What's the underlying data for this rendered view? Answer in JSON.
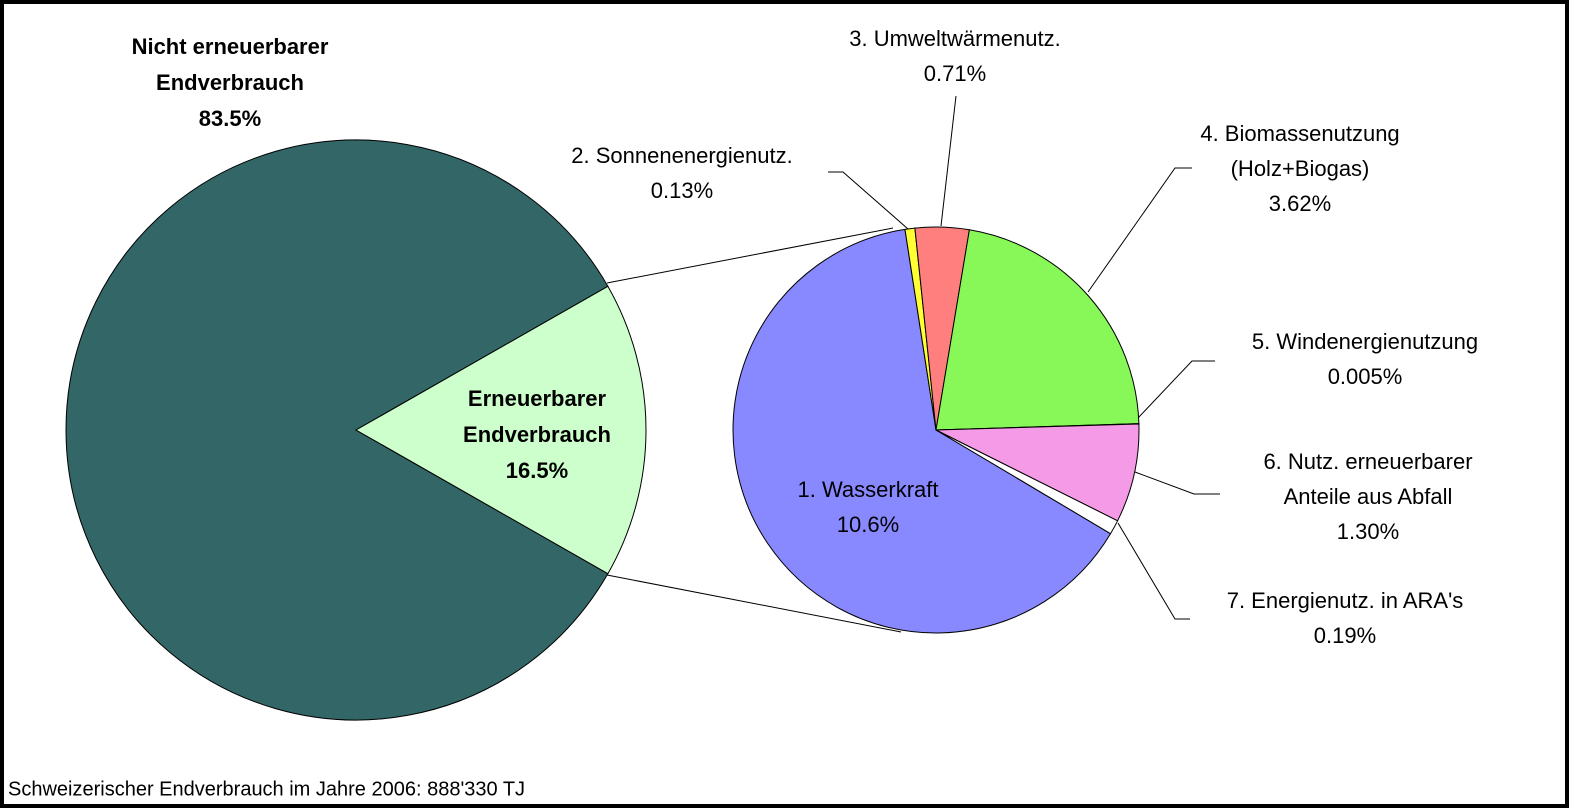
{
  "footnote": "Schweizerischer Endverbrauch im Jahre 2006:  888'330 TJ",
  "chart_data": [
    {
      "type": "pie",
      "categories": [
        [
          "Nicht erneuerbarer",
          "Endverbrauch"
        ],
        [
          "Erneuerbarer",
          "Endverbrauch"
        ]
      ],
      "values": [
        83.5,
        16.5
      ],
      "value_labels": [
        "83.5%",
        "16.5%"
      ],
      "colors": [
        "#336666",
        "#ccffcc"
      ]
    },
    {
      "type": "pie",
      "categories": [
        [
          "1. Wasserkraft"
        ],
        [
          "2. Sonnenenergienutz."
        ],
        [
          "3. Umweltwärmenutz."
        ],
        [
          "4. Biomassenutzung",
          "(Holz+Biogas)"
        ],
        [
          "5. Windenergienutzung"
        ],
        [
          "6. Nutz. erneuerbarer",
          "Anteile aus Abfall"
        ],
        [
          "7. Energienutz. in ARA's"
        ]
      ],
      "values": [
        10.6,
        0.13,
        0.71,
        3.62,
        0.005,
        1.3,
        0.19
      ],
      "value_labels": [
        "10.6%",
        "0.13%",
        "0.71%",
        "3.62%",
        "0.005%",
        "1.30%",
        "0.19%"
      ],
      "colors": [
        "#8888ff",
        "#ffff33",
        "#ff7f7f",
        "#88f858",
        "#000000",
        "#f49ae6",
        "#ffffff"
      ]
    }
  ]
}
